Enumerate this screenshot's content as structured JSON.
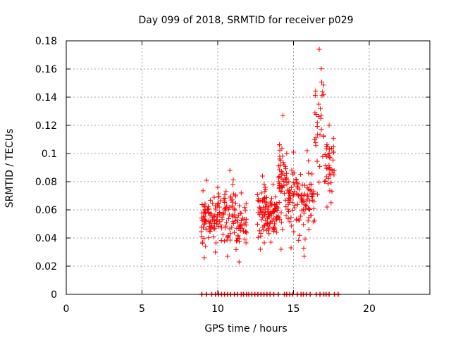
{
  "chart_data": {
    "type": "scatter",
    "title": "Day 099 of 2018, SRMTID for receiver p029",
    "xlabel": "GPS time / hours",
    "ylabel": "SRMTID / TECUs",
    "xlim": [
      0,
      24
    ],
    "ylim": [
      0,
      0.18
    ],
    "xticks": [
      0,
      5,
      10,
      15,
      20
    ],
    "yticks": [
      0,
      0.02,
      0.04,
      0.06,
      0.08,
      0.1,
      0.12,
      0.14,
      0.16,
      0.18
    ],
    "xtick_labels": [
      "0",
      "5",
      "10",
      "15",
      "20"
    ],
    "ytick_labels": [
      "0",
      "0.02",
      "0.04",
      "0.06",
      "0.08",
      "0.1",
      "0.12",
      "0.14",
      "0.16",
      "0.18"
    ],
    "grid": true,
    "marker": "+",
    "color": "#ff0000",
    "clusters": [
      {
        "x_range": [
          8.9,
          9.6
        ],
        "y_range": [
          0.026,
          0.081
        ],
        "n": 55
      },
      {
        "x_range": [
          9.6,
          10.4
        ],
        "y_range": [
          0.03,
          0.076
        ],
        "n": 45
      },
      {
        "x_range": [
          10.4,
          11.2
        ],
        "y_range": [
          0.027,
          0.088
        ],
        "n": 50
      },
      {
        "x_range": [
          11.2,
          11.9
        ],
        "y_range": [
          0.023,
          0.072
        ],
        "n": 40
      },
      {
        "x_range": [
          12.6,
          13.3
        ],
        "y_range": [
          0.032,
          0.084
        ],
        "n": 55
      },
      {
        "x_range": [
          13.3,
          14.0
        ],
        "y_range": [
          0.037,
          0.078
        ],
        "n": 55
      },
      {
        "x_range": [
          14.0,
          14.6
        ],
        "y_range": [
          0.032,
          0.127
        ],
        "n": 55
      },
      {
        "x_range": [
          14.6,
          15.4
        ],
        "y_range": [
          0.033,
          0.101
        ],
        "n": 50
      },
      {
        "x_range": [
          15.4,
          16.4
        ],
        "y_range": [
          0.027,
          0.102
        ],
        "n": 60
      },
      {
        "x_range": [
          16.4,
          17.0
        ],
        "y_range": [
          0.071,
          0.174
        ],
        "n": 30
      },
      {
        "x_range": [
          17.0,
          17.7
        ],
        "y_range": [
          0.062,
          0.12
        ],
        "n": 40
      }
    ],
    "zero_markers": [
      8.95,
      9.25,
      9.6,
      9.85,
      10.05,
      10.25,
      10.45,
      10.65,
      10.85,
      11.1,
      11.3,
      11.55,
      11.7,
      11.9,
      12.05,
      12.25,
      12.45,
      12.65,
      12.85,
      13.05,
      13.25,
      13.45,
      13.7,
      14.0,
      14.4,
      14.55,
      14.75,
      14.95,
      15.25,
      15.5,
      15.65,
      15.85,
      16.1,
      16.5,
      16.75,
      17.0,
      17.15,
      17.35,
      17.7,
      17.95
    ]
  }
}
